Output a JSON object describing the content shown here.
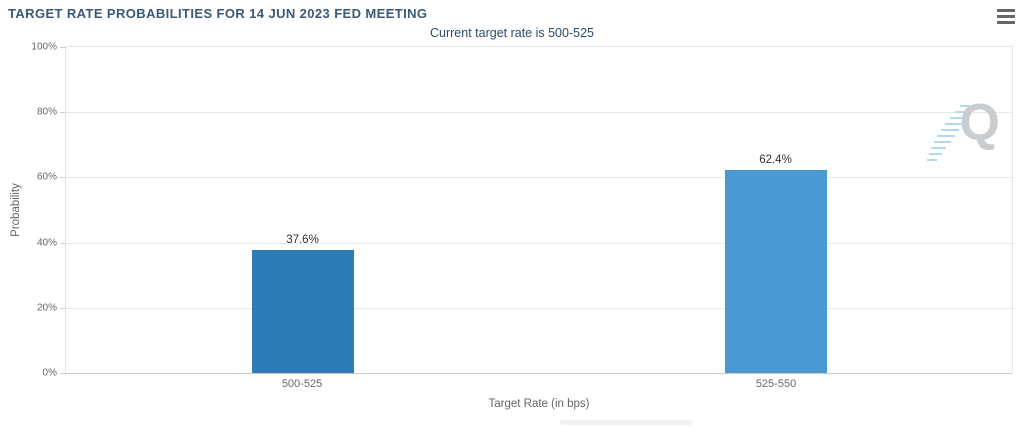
{
  "header": {
    "menu_icon": "hamburger-menu"
  },
  "chart_data": {
    "type": "bar",
    "title": "TARGET RATE PROBABILITIES FOR 14 JUN 2023 FED MEETING",
    "subtitle": "Current target rate is 500-525",
    "categories": [
      "500-525",
      "525-550"
    ],
    "values": [
      37.6,
      62.4
    ],
    "value_labels": [
      "37.6%",
      "62.4%"
    ],
    "bar_colors": [
      "#2c7cb7",
      "#4a99d3"
    ],
    "xlabel": "Target Rate (in bps)",
    "ylabel": "Probability",
    "ylim": [
      0,
      100
    ],
    "ytick_interval": 20,
    "ytick_labels": [
      "100%",
      "80%",
      "60%",
      "40%",
      "20%",
      "0%"
    ],
    "grid": true,
    "legend": "none",
    "watermark_letter": "Q"
  }
}
